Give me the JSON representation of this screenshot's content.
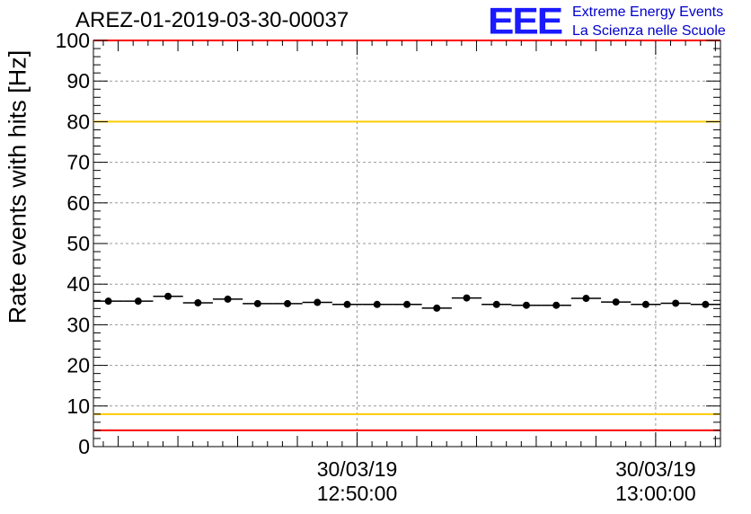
{
  "chart_data": {
    "type": "scatter",
    "title": "AREZ-01-2019-03-30-00037",
    "ylabel": "Rate events with hits [Hz]",
    "xlabel": "",
    "ylim": [
      0,
      100
    ],
    "yticks": [
      0,
      10,
      20,
      30,
      40,
      50,
      60,
      70,
      80,
      90,
      100
    ],
    "x_unit": "minutes since 12:41:10 on 30/03/19",
    "xlim": [
      0,
      21
    ],
    "x_tick_labels": [
      {
        "x": 8.83,
        "date": "30/03/19",
        "time": "12:50:00"
      },
      {
        "x": 18.83,
        "date": "30/03/19",
        "time": "13:00:00"
      }
    ],
    "bin_width": 1,
    "x": [
      0.5,
      1.5,
      2.5,
      3.5,
      4.5,
      5.5,
      6.5,
      7.5,
      8.5,
      9.5,
      10.5,
      11.5,
      12.5,
      13.5,
      14.5,
      15.5,
      16.5,
      17.5,
      18.5,
      19.5,
      20.5
    ],
    "values": [
      35.8,
      35.8,
      37.0,
      35.4,
      36.3,
      35.2,
      35.2,
      35.5,
      35.0,
      35.0,
      35.0,
      34.1,
      36.6,
      35.0,
      34.8,
      34.8,
      36.5,
      35.6,
      35.0,
      35.3,
      35.0
    ],
    "reference_lines": [
      {
        "y": 100,
        "color": "#ff0000"
      },
      {
        "y": 80,
        "color": "#ffcc00"
      },
      {
        "y": 8,
        "color": "#ffcc00"
      },
      {
        "y": 4,
        "color": "#ff0000"
      }
    ],
    "grid": true
  },
  "logo": {
    "mark": "EEE",
    "line1": "Extreme Energy Events",
    "line2": "La Scienza nelle Scuole",
    "color": "#1a1aff"
  }
}
